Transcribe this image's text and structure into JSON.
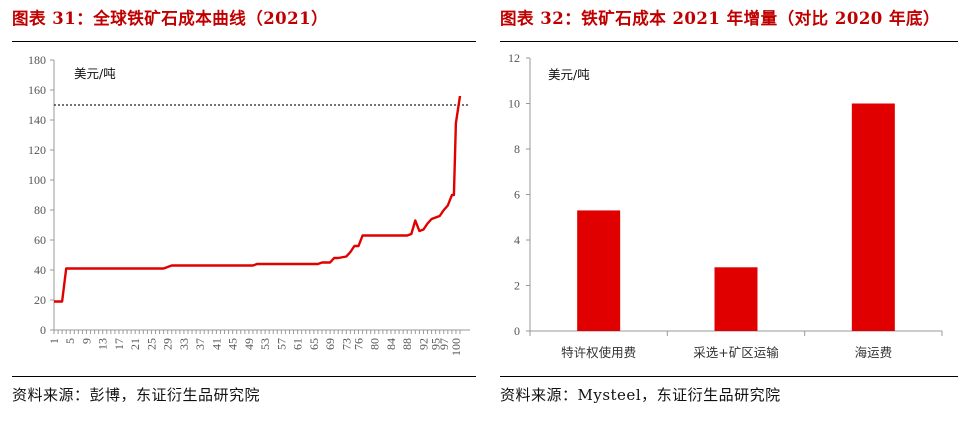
{
  "left": {
    "figure_title": "图表 31：全球铁矿石成本曲线（2021）",
    "source": "资料来源：彭博，东证衍生品研究院"
  },
  "right": {
    "figure_title": "图表 32：铁矿石成本 2021 年增量（对比 2020 年底）",
    "source": "资料来源：Mysteel，东证衍生品研究院"
  },
  "colors": {
    "accent": "#c00000",
    "series": "#e00000",
    "axis": "#999999"
  },
  "chart_data": [
    {
      "type": "line",
      "unit_label": "美元/吨",
      "ylim": [
        0,
        180
      ],
      "yticks": [
        0,
        20,
        40,
        60,
        80,
        100,
        120,
        140,
        160,
        180
      ],
      "xlim": [
        1,
        101
      ],
      "xtick_labels": [
        "1",
        "5",
        "9",
        "13",
        "17",
        "21",
        "25",
        "29",
        "33",
        "37",
        "41",
        "45",
        "49",
        "53",
        "57",
        "61",
        "65",
        "69",
        "73",
        "76",
        "80",
        "84",
        "88",
        "92",
        "95",
        "97",
        "100"
      ],
      "reference_line": {
        "y": 150,
        "style": "dotted"
      },
      "grid": false,
      "series": [
        {
          "x": [
            1,
            3,
            4,
            5,
            10,
            20,
            28,
            30,
            40,
            50,
            51,
            60,
            66,
            67,
            69,
            70,
            71,
            73,
            74,
            75,
            76,
            77,
            78,
            80,
            85,
            88,
            89,
            90,
            91,
            92,
            93,
            94,
            95,
            96,
            97,
            98,
            99,
            99.5,
            100,
            101
          ],
          "y": [
            19,
            19,
            41,
            41,
            41,
            41,
            41,
            43,
            43,
            43,
            44,
            44,
            44,
            45,
            45,
            48,
            48,
            49,
            52,
            56,
            56,
            63,
            63,
            63,
            63,
            63,
            64,
            73,
            66,
            67,
            71,
            74,
            75,
            76,
            80,
            83,
            90,
            90,
            138,
            156
          ]
        }
      ]
    },
    {
      "type": "bar",
      "unit_label": "美元/吨",
      "categories": [
        "特许权使用费",
        "采选+矿区运输",
        "海运费"
      ],
      "values": [
        5.3,
        2.8,
        10.0
      ],
      "ylim": [
        0,
        12
      ],
      "yticks": [
        0,
        2,
        4,
        6,
        8,
        10,
        12
      ],
      "grid": false
    }
  ]
}
